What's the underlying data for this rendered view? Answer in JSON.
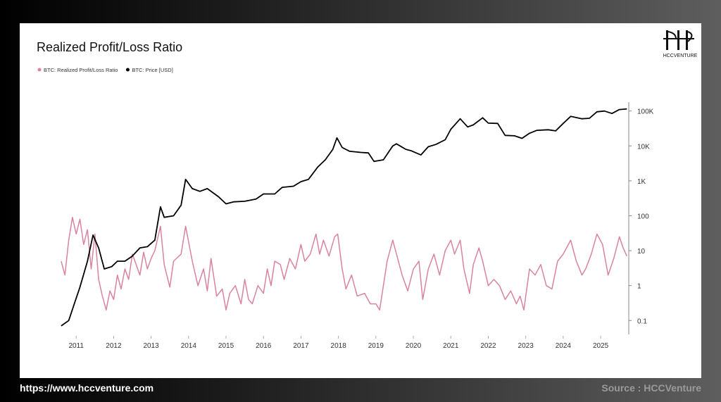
{
  "footer": {
    "url": "https://www.hccventure.com",
    "source": "Source : HCCVenture"
  },
  "logo": "HCCVENTURE",
  "chart_data": {
    "type": "line",
    "title": "Realized Profit/Loss Ratio",
    "yscale": "log",
    "legend": "top-left",
    "xlim": [
      2010.47,
      2025.75
    ],
    "xticks": [
      2011,
      2012,
      2013,
      2014,
      2015,
      2016,
      2017,
      2018,
      2019,
      2020,
      2021,
      2022,
      2023,
      2024,
      2025
    ],
    "ylim": [
      0.04,
      180000
    ],
    "yticks": [
      {
        "value": 100000,
        "label": "100K"
      },
      {
        "value": 10000,
        "label": "10K"
      },
      {
        "value": 1000,
        "label": "1K"
      },
      100,
      10,
      1,
      0.1
    ],
    "series": [
      {
        "name": "BTC: Realized Profit/Loss Ratio",
        "color": "#d9839f",
        "x": [
          2010.6,
          2010.7,
          2010.8,
          2010.9,
          2011.0,
          2011.1,
          2011.2,
          2011.3,
          2011.4,
          2011.5,
          2011.6,
          2011.7,
          2011.8,
          2011.9,
          2012.0,
          2012.1,
          2012.2,
          2012.3,
          2012.4,
          2012.5,
          2012.6,
          2012.7,
          2012.8,
          2012.9,
          2013.0,
          2013.1,
          2013.25,
          2013.35,
          2013.5,
          2013.6,
          2013.8,
          2013.92,
          2014.1,
          2014.25,
          2014.4,
          2014.5,
          2014.6,
          2014.75,
          2014.9,
          2015.0,
          2015.1,
          2015.25,
          2015.4,
          2015.5,
          2015.6,
          2015.7,
          2015.85,
          2016.0,
          2016.1,
          2016.2,
          2016.3,
          2016.45,
          2016.55,
          2016.7,
          2016.85,
          2017.0,
          2017.1,
          2017.25,
          2017.4,
          2017.5,
          2017.6,
          2017.75,
          2017.9,
          2017.98,
          2018.1,
          2018.2,
          2018.35,
          2018.5,
          2018.7,
          2018.85,
          2019.0,
          2019.1,
          2019.3,
          2019.45,
          2019.55,
          2019.7,
          2019.85,
          2020.0,
          2020.15,
          2020.25,
          2020.4,
          2020.55,
          2020.7,
          2020.85,
          2021.0,
          2021.1,
          2021.25,
          2021.35,
          2021.5,
          2021.6,
          2021.75,
          2021.85,
          2022.0,
          2022.15,
          2022.3,
          2022.45,
          2022.6,
          2022.75,
          2022.85,
          2022.95,
          2023.1,
          2023.25,
          2023.4,
          2023.55,
          2023.7,
          2023.85,
          2024.0,
          2024.2,
          2024.35,
          2024.5,
          2024.6,
          2024.75,
          2024.9,
          2025.05,
          2025.2,
          2025.35,
          2025.5,
          2025.6,
          2025.7
        ],
        "values": [
          5,
          2,
          20,
          90,
          30,
          80,
          15,
          40,
          3,
          30,
          1.5,
          0.5,
          0.2,
          0.7,
          0.4,
          2,
          0.8,
          3,
          1.5,
          8,
          4,
          2,
          9,
          3,
          6,
          10,
          50,
          4,
          0.9,
          5,
          8,
          50,
          5,
          1,
          3,
          0.7,
          6,
          0.5,
          0.8,
          0.2,
          0.6,
          1,
          0.3,
          1.5,
          0.4,
          0.3,
          1,
          0.6,
          3,
          1,
          5,
          4,
          1.5,
          6,
          3,
          15,
          5,
          8,
          30,
          8,
          20,
          7,
          25,
          30,
          3,
          0.8,
          2,
          0.5,
          0.6,
          0.3,
          0.3,
          0.2,
          5,
          20,
          8,
          2,
          0.7,
          3,
          5,
          0.4,
          3,
          8,
          2,
          10,
          20,
          8,
          20,
          3,
          0.6,
          4,
          12,
          5,
          1,
          1.5,
          1,
          0.4,
          0.7,
          0.3,
          0.5,
          0.2,
          3,
          2,
          4,
          1,
          0.8,
          5,
          8,
          20,
          5,
          2,
          3,
          8,
          30,
          15,
          2,
          6,
          25,
          12,
          7
        ]
      },
      {
        "name": "BTC: Price [USD]",
        "color": "#000000",
        "x": [
          2010.6,
          2010.8,
          2010.95,
          2011.1,
          2011.3,
          2011.45,
          2011.6,
          2011.75,
          2011.95,
          2012.1,
          2012.3,
          2012.5,
          2012.7,
          2012.9,
          2013.1,
          2013.25,
          2013.35,
          2013.6,
          2013.8,
          2013.92,
          2014.1,
          2014.3,
          2014.5,
          2014.8,
          2015.0,
          2015.2,
          2015.5,
          2015.8,
          2016.0,
          2016.3,
          2016.5,
          2016.8,
          2017.0,
          2017.2,
          2017.45,
          2017.65,
          2017.85,
          2017.96,
          2018.1,
          2018.3,
          2018.6,
          2018.8,
          2018.95,
          2019.2,
          2019.45,
          2019.55,
          2019.8,
          2019.95,
          2020.2,
          2020.4,
          2020.6,
          2020.85,
          2021.0,
          2021.25,
          2021.45,
          2021.6,
          2021.85,
          2022.0,
          2022.25,
          2022.45,
          2022.7,
          2022.9,
          2023.1,
          2023.3,
          2023.6,
          2023.8,
          2024.0,
          2024.2,
          2024.5,
          2024.7,
          2024.9,
          2025.1,
          2025.3,
          2025.5,
          2025.7
        ],
        "values": [
          0.07,
          0.1,
          0.3,
          0.9,
          5,
          28,
          12,
          3,
          3.5,
          5,
          5,
          7,
          12,
          13,
          20,
          180,
          90,
          100,
          200,
          1100,
          600,
          500,
          600,
          350,
          220,
          250,
          260,
          300,
          420,
          420,
          650,
          700,
          950,
          1100,
          2500,
          4000,
          8000,
          17000,
          9000,
          7000,
          6500,
          6300,
          3600,
          4000,
          10000,
          11500,
          8000,
          7200,
          5500,
          9500,
          11000,
          15000,
          30000,
          60000,
          35000,
          40000,
          64000,
          45000,
          44000,
          20000,
          19500,
          16500,
          23000,
          28000,
          29000,
          27000,
          44000,
          70000,
          60000,
          62000,
          95000,
          100000,
          85000,
          110000,
          115000
        ]
      }
    ]
  }
}
